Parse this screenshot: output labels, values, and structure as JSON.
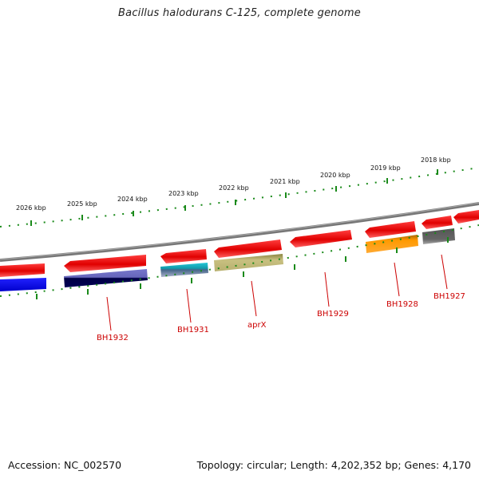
{
  "title": "Bacillus halodurans C-125, complete genome",
  "footer": {
    "accession": "Accession: NC_002570",
    "topology": "Topology: circular; Length: 4,202,352 bp; Genes: 4,170"
  },
  "kbp_labels": [
    "2026 kbp",
    "2025 kbp",
    "2024 kbp",
    "2023 kbp",
    "2022 kbp",
    "2021 kbp",
    "2020 kbp",
    "2019 kbp",
    "2018 kbp"
  ],
  "gene_labels": [
    "BH1932",
    "BH1931",
    "aprX",
    "BH1929",
    "BH1928",
    "BH1927"
  ],
  "colors": {
    "strand_arrow": "#ee1111",
    "tick": "#1a8a1a",
    "backbone": "#777777",
    "label": "#cc0000",
    "blue": "#0000ee",
    "navy": "#1a1a66",
    "cyan": "#22bbcc",
    "olive": "#b8b070",
    "orange": "#ff9900",
    "gray": "#666666"
  }
}
